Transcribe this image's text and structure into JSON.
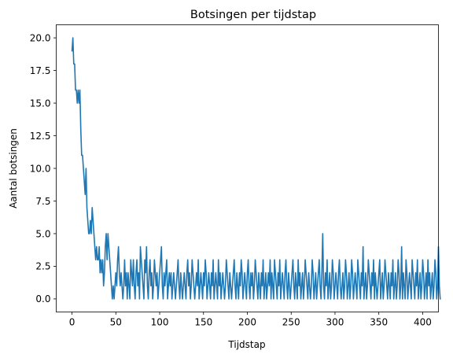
{
  "chart_data": {
    "type": "line",
    "title": "Botsingen per tijdstap",
    "xlabel": "Tijdstap",
    "ylabel": "Aantal botsingen",
    "xlim": [
      -18,
      418
    ],
    "ylim": [
      -1,
      21
    ],
    "xticks": [
      0,
      50,
      100,
      150,
      200,
      250,
      300,
      350,
      400
    ],
    "xtick_labels": [
      "0",
      "50",
      "100",
      "150",
      "200",
      "250",
      "300",
      "350",
      "400"
    ],
    "yticks": [
      0,
      2.5,
      5,
      7.5,
      10,
      12.5,
      15,
      17.5,
      20
    ],
    "ytick_labels": [
      "0.0",
      "2.5",
      "5.0",
      "7.5",
      "10.0",
      "12.5",
      "15.0",
      "17.5",
      "20.0"
    ],
    "grid": false,
    "legend": false,
    "series": [
      {
        "color": "#1f77b4",
        "x_start": 0,
        "x_step": 1,
        "values": [
          19,
          20,
          18,
          18,
          16,
          16,
          15,
          16,
          15,
          16,
          13,
          11,
          11,
          10,
          9,
          8,
          10,
          7,
          6,
          5,
          5,
          6,
          5,
          7,
          6,
          5,
          4,
          3,
          4,
          3,
          3,
          4,
          2,
          3,
          2,
          3,
          1,
          2,
          4,
          5,
          3,
          5,
          4,
          3,
          2,
          1,
          0,
          1,
          0,
          1,
          2,
          1,
          3,
          4,
          2,
          1,
          2,
          1,
          0,
          1,
          3,
          1,
          2,
          0,
          2,
          1,
          0,
          3,
          2,
          1,
          3,
          1,
          0,
          2,
          3,
          1,
          2,
          0,
          4,
          3,
          2,
          1,
          0,
          3,
          2,
          4,
          1,
          0,
          2,
          3,
          1,
          2,
          0,
          1,
          3,
          2,
          1,
          2,
          0,
          1,
          2,
          3,
          4,
          1,
          0,
          2,
          1,
          2,
          3,
          0,
          1,
          2,
          1,
          2,
          0,
          1,
          2,
          1,
          0,
          1,
          2,
          3,
          1,
          0,
          2,
          1,
          0,
          1,
          2,
          1,
          0,
          2,
          3,
          1,
          2,
          0,
          1,
          3,
          2,
          1,
          0,
          1,
          2,
          1,
          3,
          0,
          1,
          2,
          1,
          0,
          2,
          1,
          3,
          2,
          0,
          1,
          2,
          1,
          0,
          2,
          1,
          3,
          0,
          1,
          2,
          1,
          0,
          3,
          1,
          2,
          0,
          1,
          2,
          1,
          0,
          1,
          3,
          2,
          1,
          0,
          2,
          1,
          0,
          1,
          2,
          3,
          1,
          0,
          2,
          1,
          0,
          2,
          1,
          3,
          2,
          0,
          1,
          2,
          1,
          0,
          2,
          3,
          1,
          0,
          2,
          1,
          2,
          0,
          1,
          3,
          2,
          1,
          0,
          2,
          1,
          0,
          2,
          1,
          3,
          0,
          1,
          2,
          0,
          1,
          2,
          1,
          3,
          0,
          2,
          1,
          0,
          3,
          2,
          1,
          0,
          2,
          1,
          3,
          0,
          1,
          2,
          1,
          0,
          2,
          3,
          1,
          0,
          2,
          1,
          0,
          1,
          2,
          3,
          1,
          0,
          2,
          1,
          0,
          3,
          1,
          2,
          0,
          1,
          2,
          0,
          1,
          3,
          2,
          1,
          0,
          2,
          1,
          0,
          1,
          3,
          2,
          0,
          1,
          2,
          0,
          1,
          2,
          3,
          1,
          0,
          2,
          5,
          1,
          0,
          2,
          1,
          3,
          0,
          1,
          2,
          0,
          1,
          3,
          2,
          0,
          1,
          2,
          1,
          0,
          2,
          3,
          1,
          0,
          1,
          2,
          0,
          1,
          3,
          2,
          0,
          1,
          2,
          0,
          1,
          3,
          2,
          0,
          1,
          2,
          1,
          0,
          3,
          2,
          1,
          0,
          2,
          1,
          4,
          0,
          1,
          2,
          0,
          1,
          3,
          2,
          1,
          0,
          2,
          1,
          3,
          0,
          2,
          1,
          0,
          1,
          2,
          3,
          0,
          1,
          2,
          0,
          1,
          3,
          2,
          1,
          0,
          2,
          1,
          0,
          2,
          1,
          3,
          0,
          1,
          2,
          0,
          1,
          3,
          2,
          0,
          1,
          4,
          0,
          2,
          1,
          0,
          3,
          2,
          0,
          1,
          2,
          1,
          0,
          3,
          2,
          1,
          0,
          2,
          1,
          3,
          0,
          1,
          2,
          0,
          1,
          3,
          2,
          0,
          1,
          2,
          0,
          3,
          1,
          2,
          0,
          1,
          2,
          0,
          1,
          3,
          2,
          0,
          1,
          4,
          1,
          0
        ]
      }
    ]
  }
}
